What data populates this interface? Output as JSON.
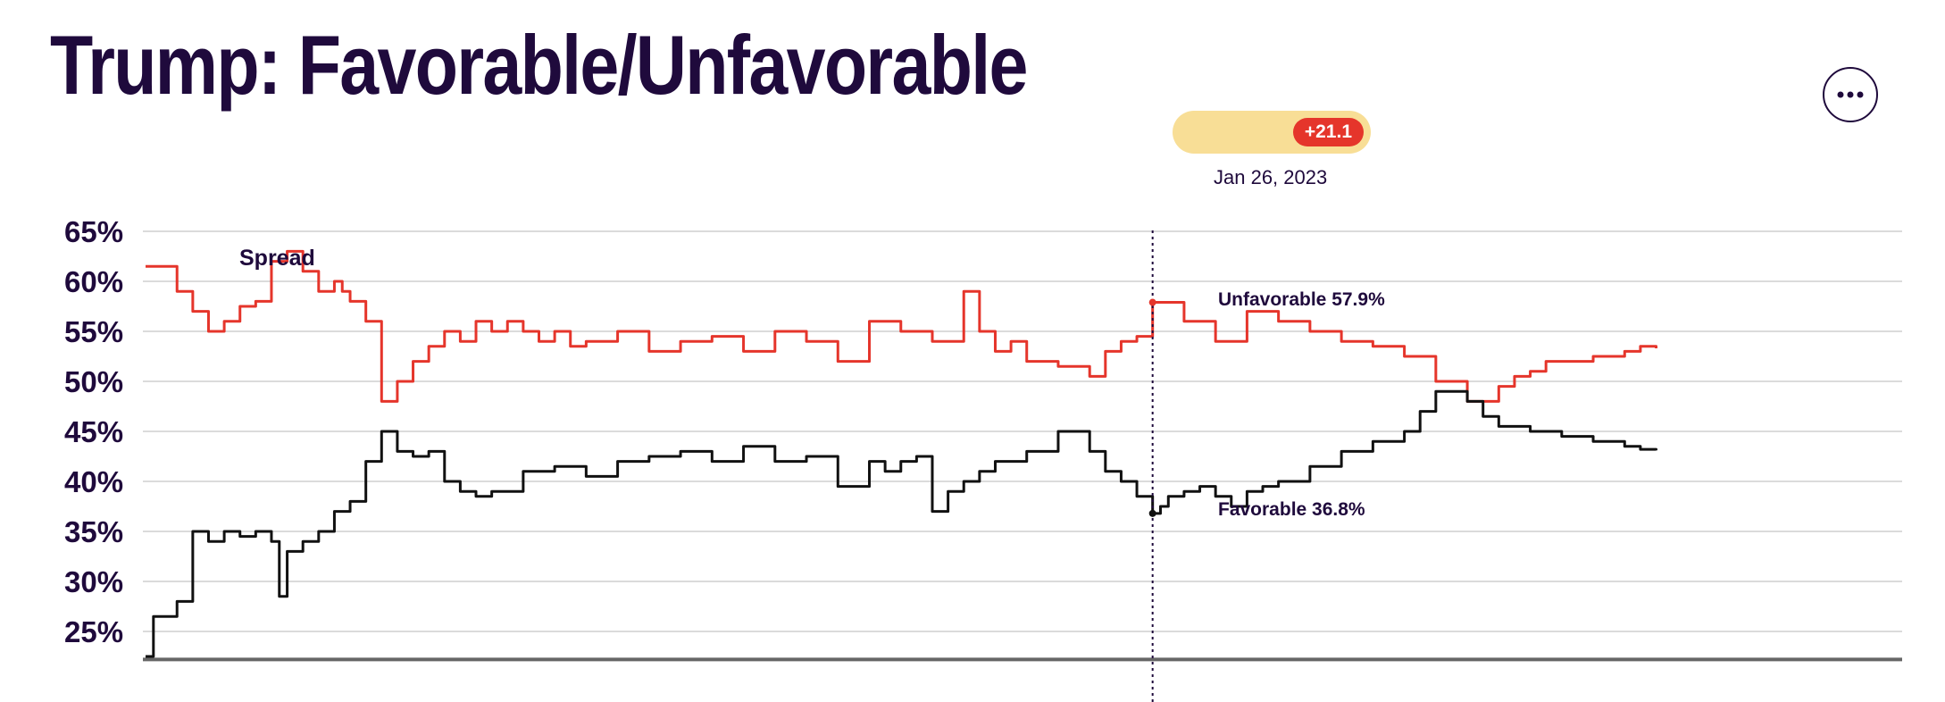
{
  "header": {
    "title": "Trump: Favorable/Unfavorable",
    "more_button": {
      "icon": "more-horizontal-icon"
    }
  },
  "hover": {
    "spread_value": "+21.1",
    "date": "Jan 26, 2023",
    "pill_color": "#f8de96",
    "badge_color": "#e5352b"
  },
  "colors": {
    "unfavorable": "#e5352b",
    "favorable": "#111111",
    "text": "#1f0a3c",
    "grid": "#cfcfcf",
    "axis": "#666666"
  },
  "chart_data": {
    "type": "line",
    "title": "Trump: Favorable/Unfavorable",
    "x_domain": [
      0,
      100
    ],
    "ylim": [
      22,
      66
    ],
    "y_ticks": [
      25,
      30,
      35,
      40,
      45,
      50,
      55,
      60,
      65
    ],
    "y_tick_labels": [
      "25%",
      "30%",
      "35%",
      "40%",
      "45%",
      "50%",
      "55%",
      "60%",
      "65%"
    ],
    "grid": true,
    "hover_x": 64.0,
    "annotations": {
      "spread": "Spread",
      "unfavorable": "Unfavorable 57.9%",
      "favorable": "Favorable 36.8%"
    },
    "series": [
      {
        "name": "Unfavorable",
        "color": "#e5352b",
        "x": [
          0,
          2,
          3,
          4,
          5,
          6,
          7,
          8,
          9,
          10,
          11,
          12,
          12.5,
          13,
          14,
          15,
          16,
          17,
          18,
          19,
          20,
          21,
          22,
          23,
          24,
          25,
          26,
          27,
          28,
          30,
          32,
          34,
          36,
          38,
          40,
          42,
          44,
          46,
          48,
          50,
          52,
          53,
          54,
          55,
          56,
          58,
          60,
          61,
          62,
          63,
          64,
          66,
          68,
          70,
          72,
          74,
          76,
          78,
          80,
          82,
          84,
          86,
          87,
          88,
          89,
          90,
          92,
          94,
          95,
          96
        ],
        "y": [
          61.5,
          59,
          57,
          55,
          56,
          57.5,
          58,
          62,
          63,
          61,
          59,
          60,
          59,
          58,
          56,
          48,
          50,
          52,
          53.5,
          55,
          54,
          56,
          55,
          56,
          55,
          54,
          55,
          53.5,
          54,
          55,
          53,
          54,
          54.5,
          53,
          55,
          54,
          52,
          56,
          55,
          54,
          59,
          55,
          53,
          54,
          52,
          51.5,
          50.5,
          53,
          54,
          54.5,
          57.9,
          56,
          54,
          57,
          56,
          55,
          54,
          53.5,
          52.5,
          50,
          48,
          49.5,
          50.5,
          51,
          52,
          52,
          52.5,
          53,
          53.5,
          53.3
        ]
      },
      {
        "name": "Favorable",
        "color": "#111111",
        "x": [
          0,
          0.5,
          1,
          2,
          3,
          4,
          5,
          6,
          7,
          8,
          8.5,
          9,
          10,
          11,
          12,
          13,
          14,
          15,
          16,
          17,
          18,
          19,
          20,
          21,
          22,
          24,
          26,
          28,
          30,
          32,
          34,
          36,
          38,
          40,
          42,
          44,
          46,
          47,
          48,
          49,
          50,
          51,
          52,
          53,
          54,
          56,
          58,
          60,
          61,
          62,
          63,
          64,
          64.5,
          65,
          66,
          67,
          68,
          69,
          70,
          71,
          72,
          74,
          76,
          78,
          80,
          81,
          82,
          84,
          85,
          86,
          88,
          90,
          92,
          94,
          95,
          96
        ],
        "y": [
          22.5,
          26.5,
          26.5,
          28,
          35,
          34,
          35,
          34.5,
          35,
          34,
          28.5,
          33,
          34,
          35,
          37,
          38,
          42,
          45,
          43,
          42.5,
          43,
          40,
          39,
          38.5,
          39,
          41,
          41.5,
          40.5,
          42,
          42.5,
          43,
          42,
          43.5,
          42,
          42.5,
          39.5,
          42,
          41,
          42,
          42.5,
          37,
          39,
          40,
          41,
          42,
          43,
          45,
          43,
          41,
          40,
          38.5,
          36.8,
          37.5,
          38.5,
          39,
          39.5,
          38.5,
          37.5,
          39,
          39.5,
          40,
          41.5,
          43,
          44,
          45,
          47,
          49,
          48,
          46.5,
          45.5,
          45,
          44.5,
          44,
          43.5,
          43.2,
          43.1
        ]
      }
    ]
  }
}
